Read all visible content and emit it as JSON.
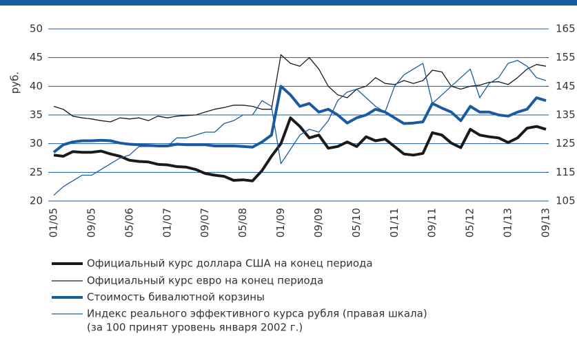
{
  "chart_data": {
    "type": "line",
    "categories": [
      "01/05",
      null,
      null,
      null,
      "09/05",
      null,
      null,
      null,
      "05/06",
      null,
      null,
      null,
      "01/07",
      null,
      null,
      null,
      "09/07",
      null,
      null,
      null,
      "05/08",
      null,
      null,
      null,
      "01/09",
      null,
      null,
      null,
      "09/09",
      null,
      null,
      null,
      "05/10",
      null,
      null,
      null,
      "01/11",
      null,
      null,
      null,
      "09/11",
      null,
      null,
      null,
      "05/12",
      null,
      null,
      null,
      "01/13",
      null,
      null,
      null,
      "09/13"
    ],
    "y_label": "руб.",
    "ylim": [
      20,
      50
    ],
    "yticks": [
      20,
      25,
      30,
      35,
      40,
      45,
      50
    ],
    "y2lim": [
      105,
      165
    ],
    "y2ticks": [
      105,
      115,
      125,
      135,
      145,
      155,
      165
    ],
    "grid": true,
    "series": [
      {
        "name": "Официальный курс доллара США на конец периода",
        "color": "#1a1a1a",
        "width": 4,
        "values": [
          28,
          27.8,
          28.6,
          28.5,
          28.5,
          28.7,
          28.2,
          27.8,
          27.1,
          26.9,
          26.8,
          26.4,
          26.3,
          26.0,
          25.9,
          25.5,
          24.8,
          24.5,
          24.3,
          23.6,
          23.7,
          23.5,
          25.3,
          27.8,
          30,
          34.5,
          33,
          31,
          31.5,
          29.2,
          29.5,
          30.3,
          29.5,
          31.2,
          30.5,
          30.8,
          29.5,
          28.2,
          28.0,
          28.3,
          31.9,
          31.5,
          30.1,
          29.3,
          32.5,
          31.5,
          31.2,
          31,
          30.2,
          31.0,
          32.7,
          33,
          32.5
        ]
      },
      {
        "name": "Официальный курс евро на конец периода",
        "color": "#1a1a1a",
        "width": 1.3,
        "values": [
          36.5,
          36,
          34.8,
          34.5,
          34.3,
          34,
          33.8,
          34.5,
          34.3,
          34.5,
          34,
          34.8,
          34.5,
          34.8,
          34.9,
          35,
          35.5,
          36,
          36.3,
          36.7,
          36.7,
          36.5,
          36,
          36,
          45.5,
          44,
          43.5,
          45,
          43,
          40,
          38.5,
          38,
          39.5,
          40,
          41.5,
          40.5,
          40.3,
          41,
          40.5,
          41,
          42.8,
          42.5,
          40,
          39.5,
          40,
          40.2,
          40.7,
          40.8,
          40.3,
          41.5,
          43,
          43.8,
          43.5
        ]
      },
      {
        "name": "Стоимость бивалютной корзины",
        "color": "#1a5aa0",
        "width": 4,
        "values": [
          28.5,
          29.8,
          30.3,
          30.5,
          30.5,
          30.6,
          30.5,
          30.1,
          29.9,
          29.8,
          29.7,
          29.6,
          29.6,
          29.9,
          29.8,
          29.8,
          29.8,
          29.6,
          29.6,
          29.6,
          29.5,
          29.4,
          30.3,
          31.5,
          40,
          38.5,
          36.5,
          37,
          35.5,
          36,
          35,
          33.6,
          34.5,
          35,
          36,
          35.5,
          34.5,
          33.5,
          33.6,
          33.8,
          37,
          36.2,
          35.5,
          34,
          36.5,
          35.5,
          35.5,
          35,
          34.8,
          35.5,
          36,
          38,
          37.5
        ]
      },
      {
        "name": "Индекс реального эффективного курса рубля (правая шкала)",
        "color": "#1a5aa0",
        "width": 1.3,
        "axis": "y2",
        "values": [
          107,
          110,
          112,
          114,
          114,
          116,
          118,
          120,
          121,
          124,
          124,
          124,
          124,
          127,
          127,
          128,
          129,
          129,
          132,
          133,
          135,
          135,
          140,
          138,
          118,
          123,
          128,
          130,
          129,
          133,
          140,
          143,
          144,
          141,
          138,
          136,
          145,
          149,
          151,
          153,
          139,
          142,
          145,
          148,
          151,
          141,
          146,
          148,
          153,
          154,
          152,
          148,
          147
        ]
      }
    ],
    "legend_note": "(за 100 принят уровень января 2002 г.)"
  }
}
